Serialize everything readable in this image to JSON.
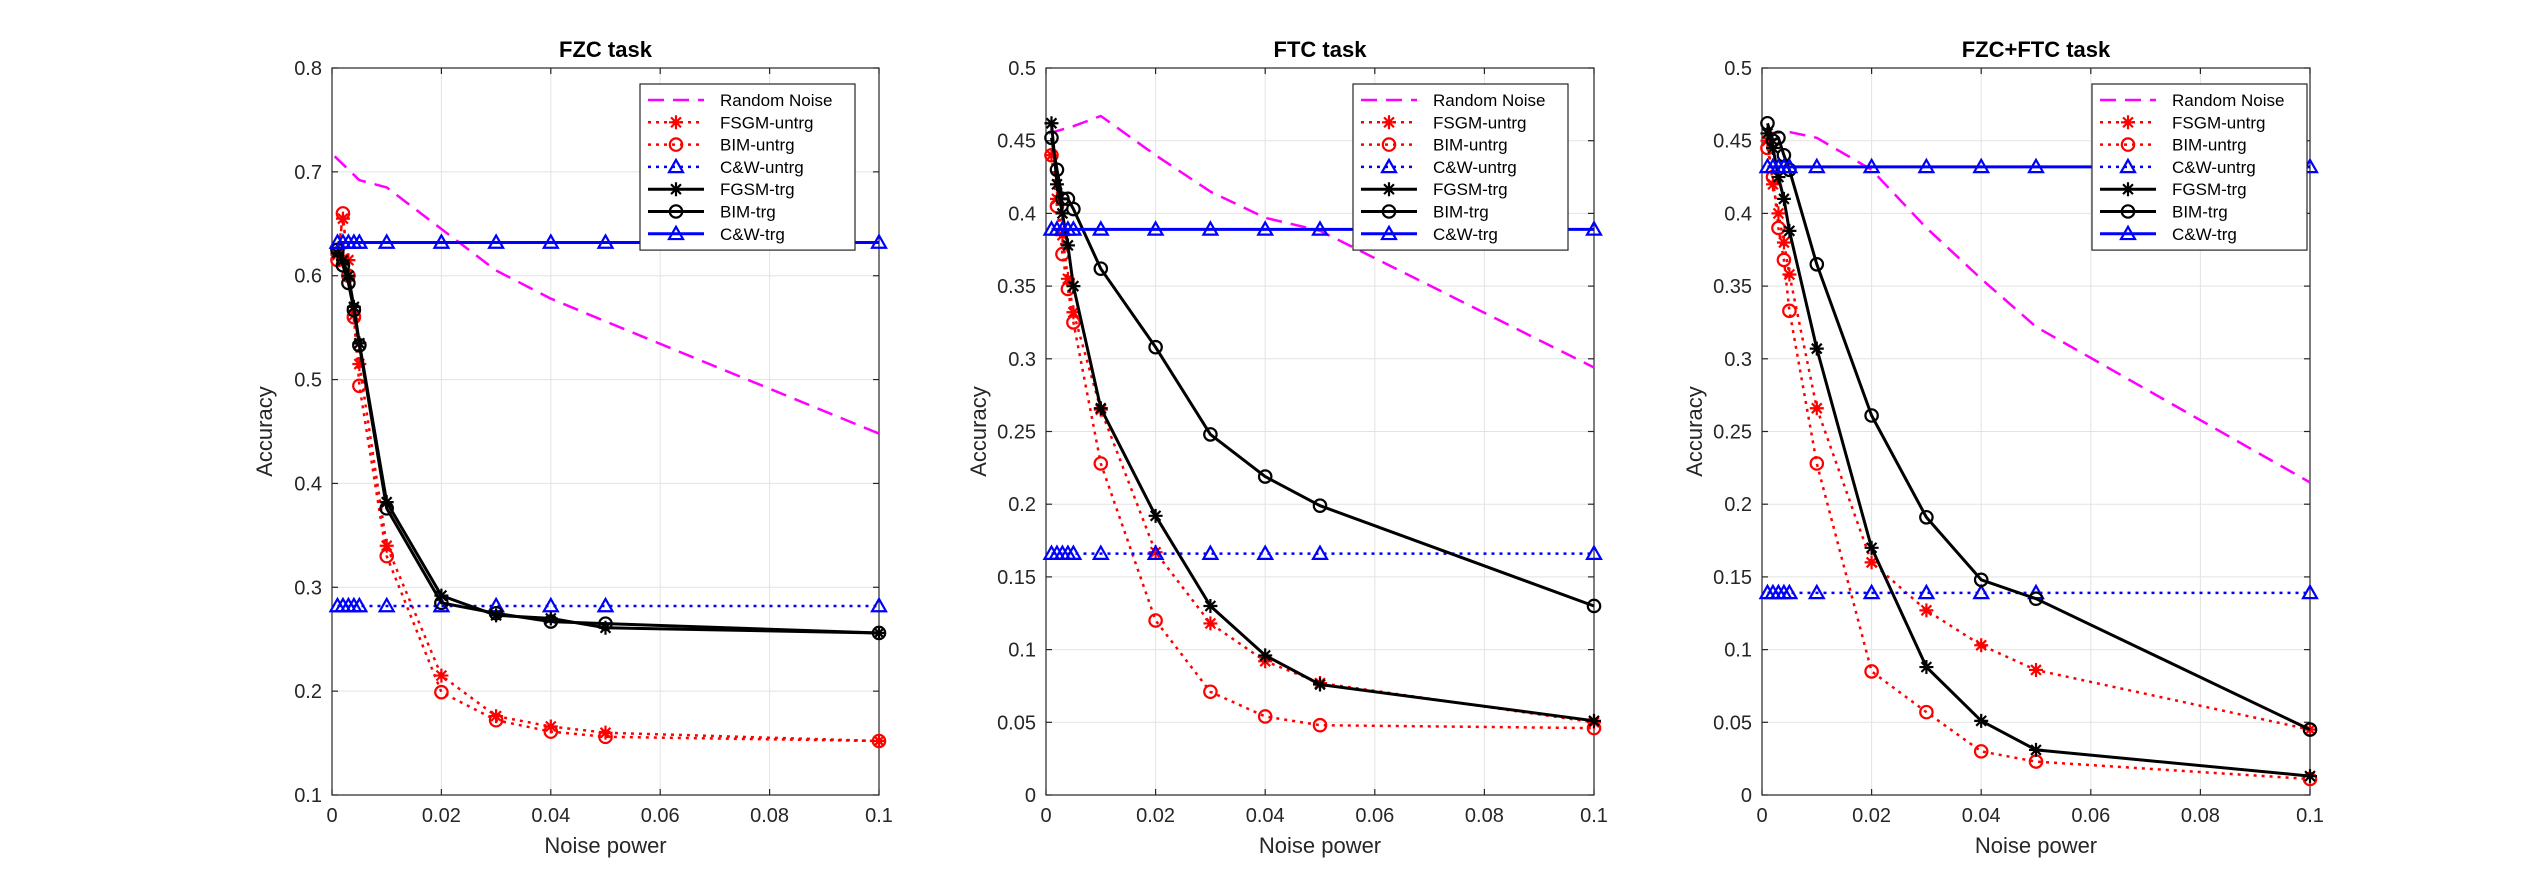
{
  "chart_data": [
    {
      "type": "line",
      "title": "FZC task",
      "xlabel": "Noise power",
      "ylabel": "Accuracy",
      "xlim": [
        0,
        0.1
      ],
      "ylim": [
        0.1,
        0.8
      ],
      "xticks": [
        0,
        0.02,
        0.04,
        0.06,
        0.08,
        0.1
      ],
      "xtick_labels": [
        "0",
        "0.02",
        "0.04",
        "0.06",
        "0.08",
        "0.1"
      ],
      "yticks": [
        0.1,
        0.2,
        0.3,
        0.4,
        0.5,
        0.6,
        0.7,
        0.8
      ],
      "ytick_labels": [
        "0.1",
        "0.2",
        "0.3",
        "0.4",
        "0.5",
        "0.6",
        "0.7",
        "0.8"
      ],
      "grid": true,
      "legend_position": "top-right",
      "series": [
        {
          "name": "Random Noise",
          "color": "#ff00ff",
          "dash": "dashed",
          "marker": "none",
          "x": [
            0.0005,
            0.005,
            0.01,
            0.02,
            0.03,
            0.04,
            0.05,
            0.1
          ],
          "y": [
            0.715,
            0.692,
            0.685,
            0.645,
            0.605,
            0.578,
            0.556,
            0.448
          ]
        },
        {
          "name": "FSGM-untrg",
          "color": "#ff0000",
          "dash": "dotted",
          "marker": "star",
          "x": [
            0.001,
            0.002,
            0.003,
            0.004,
            0.005,
            0.01,
            0.02,
            0.03,
            0.04,
            0.05,
            0.1
          ],
          "y": [
            0.62,
            0.655,
            0.615,
            0.562,
            0.515,
            0.34,
            0.215,
            0.176,
            0.166,
            0.16,
            0.152
          ]
        },
        {
          "name": "BIM-untrg",
          "color": "#ff0000",
          "dash": "dotted",
          "marker": "circle",
          "x": [
            0.001,
            0.002,
            0.003,
            0.004,
            0.005,
            0.01,
            0.02,
            0.03,
            0.04,
            0.05,
            0.1
          ],
          "y": [
            0.615,
            0.66,
            0.6,
            0.56,
            0.494,
            0.33,
            0.199,
            0.172,
            0.161,
            0.156,
            0.152
          ]
        },
        {
          "name": "C&W-untrg",
          "color": "#0000ff",
          "dash": "dotted",
          "marker": "triangle",
          "x": [
            0.001,
            0.002,
            0.003,
            0.004,
            0.005,
            0.01,
            0.02,
            0.03,
            0.04,
            0.05,
            0.1
          ],
          "y": [
            0.282,
            0.282,
            0.282,
            0.282,
            0.282,
            0.282,
            0.282,
            0.282,
            0.282,
            0.282,
            0.282
          ]
        },
        {
          "name": "FGSM-trg",
          "color": "#000000",
          "dash": "solid",
          "marker": "star",
          "x": [
            0.001,
            0.002,
            0.003,
            0.004,
            0.005,
            0.01,
            0.02,
            0.03,
            0.04,
            0.05,
            0.1
          ],
          "y": [
            0.622,
            0.615,
            0.6,
            0.57,
            0.535,
            0.382,
            0.292,
            0.273,
            0.27,
            0.261,
            0.256
          ]
        },
        {
          "name": "BIM-trg",
          "color": "#000000",
          "dash": "solid",
          "marker": "circle",
          "x": [
            0.001,
            0.002,
            0.003,
            0.004,
            0.005,
            0.01,
            0.02,
            0.03,
            0.04,
            0.05,
            0.1
          ],
          "y": [
            0.625,
            0.61,
            0.593,
            0.567,
            0.533,
            0.376,
            0.285,
            0.275,
            0.267,
            0.265,
            0.256
          ]
        },
        {
          "name": "C&W-trg",
          "color": "#0000ff",
          "dash": "solid",
          "marker": "triangle",
          "x": [
            0.001,
            0.002,
            0.003,
            0.004,
            0.005,
            0.01,
            0.02,
            0.03,
            0.04,
            0.05,
            0.1
          ],
          "y": [
            0.632,
            0.632,
            0.632,
            0.632,
            0.632,
            0.632,
            0.632,
            0.632,
            0.632,
            0.632,
            0.632
          ]
        }
      ]
    },
    {
      "type": "line",
      "title": "FTC task",
      "xlabel": "Noise power",
      "ylabel": "Accuracy",
      "xlim": [
        0,
        0.1
      ],
      "ylim": [
        0,
        0.5
      ],
      "xticks": [
        0,
        0.02,
        0.04,
        0.06,
        0.08,
        0.1
      ],
      "xtick_labels": [
        "0",
        "0.02",
        "0.04",
        "0.06",
        "0.08",
        "0.1"
      ],
      "yticks": [
        0,
        0.05,
        0.1,
        0.15,
        0.2,
        0.25,
        0.3,
        0.35,
        0.4,
        0.45,
        0.5
      ],
      "ytick_labels": [
        "0",
        "0.05",
        "0.1",
        "0.15",
        "0.2",
        "0.25",
        "0.3",
        "0.35",
        "0.4",
        "0.45",
        "0.5"
      ],
      "grid": true,
      "legend_position": "top-right",
      "series": [
        {
          "name": "Random Noise",
          "color": "#ff00ff",
          "dash": "dashed",
          "marker": "none",
          "x": [
            0.0005,
            0.005,
            0.01,
            0.02,
            0.03,
            0.04,
            0.05,
            0.1
          ],
          "y": [
            0.455,
            0.46,
            0.467,
            0.44,
            0.415,
            0.397,
            0.388,
            0.294
          ]
        },
        {
          "name": "FSGM-untrg",
          "color": "#ff0000",
          "dash": "dotted",
          "marker": "star",
          "x": [
            0.001,
            0.002,
            0.003,
            0.004,
            0.005,
            0.01,
            0.02,
            0.03,
            0.04,
            0.05,
            0.1
          ],
          "y": [
            0.44,
            0.41,
            0.385,
            0.355,
            0.332,
            0.265,
            0.167,
            0.118,
            0.092,
            0.077,
            0.05
          ]
        },
        {
          "name": "BIM-untrg",
          "color": "#ff0000",
          "dash": "dotted",
          "marker": "circle",
          "x": [
            0.001,
            0.002,
            0.003,
            0.004,
            0.005,
            0.01,
            0.02,
            0.03,
            0.04,
            0.05,
            0.1
          ],
          "y": [
            0.44,
            0.405,
            0.372,
            0.348,
            0.325,
            0.228,
            0.12,
            0.071,
            0.054,
            0.048,
            0.046
          ]
        },
        {
          "name": "C&W-untrg",
          "color": "#0000ff",
          "dash": "dotted",
          "marker": "triangle",
          "x": [
            0.001,
            0.002,
            0.003,
            0.004,
            0.005,
            0.01,
            0.02,
            0.03,
            0.04,
            0.05,
            0.1
          ],
          "y": [
            0.166,
            0.166,
            0.166,
            0.166,
            0.166,
            0.166,
            0.166,
            0.166,
            0.166,
            0.166,
            0.166
          ]
        },
        {
          "name": "FGSM-trg",
          "color": "#000000",
          "dash": "solid",
          "marker": "star",
          "x": [
            0.001,
            0.002,
            0.003,
            0.004,
            0.005,
            0.01,
            0.02,
            0.03,
            0.04,
            0.05,
            0.1
          ],
          "y": [
            0.462,
            0.42,
            0.4,
            0.378,
            0.35,
            0.266,
            0.192,
            0.13,
            0.096,
            0.076,
            0.051
          ]
        },
        {
          "name": "BIM-trg",
          "color": "#000000",
          "dash": "solid",
          "marker": "circle",
          "x": [
            0.001,
            0.002,
            0.003,
            0.004,
            0.005,
            0.01,
            0.02,
            0.03,
            0.04,
            0.05,
            0.1
          ],
          "y": [
            0.452,
            0.43,
            0.41,
            0.41,
            0.403,
            0.362,
            0.308,
            0.248,
            0.219,
            0.199,
            0.13
          ]
        },
        {
          "name": "C&W-trg",
          "color": "#0000ff",
          "dash": "solid",
          "marker": "triangle",
          "x": [
            0.001,
            0.002,
            0.003,
            0.004,
            0.005,
            0.01,
            0.02,
            0.03,
            0.04,
            0.05,
            0.1
          ],
          "y": [
            0.389,
            0.389,
            0.389,
            0.389,
            0.389,
            0.389,
            0.389,
            0.389,
            0.389,
            0.389,
            0.389
          ]
        }
      ]
    },
    {
      "type": "line",
      "title": "FZC+FTC task",
      "xlabel": "Noise power",
      "ylabel": "Accuracy",
      "xlim": [
        0,
        0.1
      ],
      "ylim": [
        0,
        0.5
      ],
      "xticks": [
        0,
        0.02,
        0.04,
        0.06,
        0.08,
        0.1
      ],
      "xtick_labels": [
        "0",
        "0.02",
        "0.04",
        "0.06",
        "0.08",
        "0.1"
      ],
      "yticks": [
        0,
        0.05,
        0.1,
        0.15,
        0.2,
        0.25,
        0.3,
        0.35,
        0.4,
        0.45,
        0.5
      ],
      "ytick_labels": [
        "0",
        "0.05",
        "0.1",
        "0.15",
        "0.2",
        "0.25",
        "0.3",
        "0.35",
        "0.4",
        "0.45",
        "0.5"
      ],
      "grid": true,
      "legend_position": "top-right",
      "series": [
        {
          "name": "Random Noise",
          "color": "#ff00ff",
          "dash": "dashed",
          "marker": "none",
          "x": [
            0.0005,
            0.005,
            0.01,
            0.02,
            0.03,
            0.04,
            0.05,
            0.1
          ],
          "y": [
            0.455,
            0.456,
            0.452,
            0.43,
            0.39,
            0.355,
            0.322,
            0.215
          ]
        },
        {
          "name": "FSGM-untrg",
          "color": "#ff0000",
          "dash": "dotted",
          "marker": "star",
          "x": [
            0.001,
            0.002,
            0.003,
            0.004,
            0.005,
            0.01,
            0.02,
            0.03,
            0.04,
            0.05,
            0.1
          ],
          "y": [
            0.45,
            0.42,
            0.4,
            0.38,
            0.358,
            0.266,
            0.16,
            0.127,
            0.103,
            0.086,
            0.045
          ]
        },
        {
          "name": "BIM-untrg",
          "color": "#ff0000",
          "dash": "dotted",
          "marker": "circle",
          "x": [
            0.001,
            0.002,
            0.003,
            0.004,
            0.005,
            0.01,
            0.02,
            0.03,
            0.04,
            0.05,
            0.1
          ],
          "y": [
            0.445,
            0.425,
            0.39,
            0.368,
            0.333,
            0.228,
            0.085,
            0.057,
            0.03,
            0.023,
            0.011
          ]
        },
        {
          "name": "C&W-untrg",
          "color": "#0000ff",
          "dash": "dotted",
          "marker": "triangle",
          "x": [
            0.001,
            0.002,
            0.003,
            0.004,
            0.005,
            0.01,
            0.02,
            0.03,
            0.04,
            0.05,
            0.1
          ],
          "y": [
            0.139,
            0.139,
            0.139,
            0.139,
            0.139,
            0.139,
            0.139,
            0.139,
            0.139,
            0.139,
            0.139
          ]
        },
        {
          "name": "FGSM-trg",
          "color": "#000000",
          "dash": "solid",
          "marker": "star",
          "x": [
            0.001,
            0.002,
            0.003,
            0.004,
            0.005,
            0.01,
            0.02,
            0.03,
            0.04,
            0.05,
            0.1
          ],
          "y": [
            0.455,
            0.445,
            0.425,
            0.41,
            0.388,
            0.307,
            0.17,
            0.088,
            0.051,
            0.031,
            0.013
          ]
        },
        {
          "name": "BIM-trg",
          "color": "#000000",
          "dash": "solid",
          "marker": "circle",
          "x": [
            0.001,
            0.002,
            0.003,
            0.004,
            0.005,
            0.01,
            0.02,
            0.03,
            0.04,
            0.05,
            0.1
          ],
          "y": [
            0.462,
            0.45,
            0.452,
            0.44,
            0.43,
            0.365,
            0.261,
            0.191,
            0.148,
            0.135,
            0.045
          ]
        },
        {
          "name": "C&W-trg",
          "color": "#0000ff",
          "dash": "solid",
          "marker": "triangle",
          "x": [
            0.001,
            0.002,
            0.003,
            0.004,
            0.005,
            0.01,
            0.02,
            0.03,
            0.04,
            0.05,
            0.1
          ],
          "y": [
            0.432,
            0.432,
            0.432,
            0.432,
            0.432,
            0.432,
            0.432,
            0.432,
            0.432,
            0.432,
            0.432
          ]
        }
      ]
    }
  ]
}
